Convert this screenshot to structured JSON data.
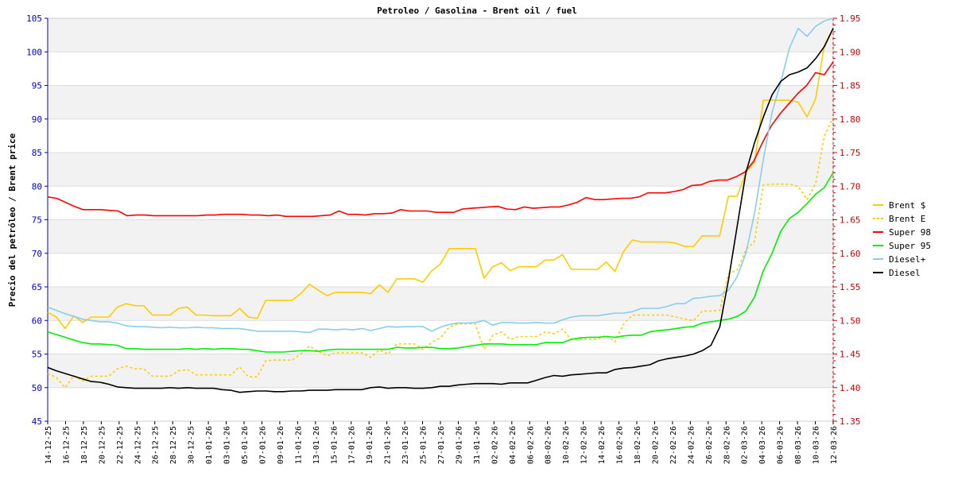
{
  "chart_data": {
    "type": "line",
    "title": "Petroleo / Gasolina  -  Brent oil / fuel",
    "ylabel": "Precio del petróleo  /  Brent price",
    "xlabel": "",
    "ylim_left": [
      45,
      105
    ],
    "ylim_right": [
      1.35,
      1.95
    ],
    "left_ticks": [
      "45",
      "50",
      "55",
      "60",
      "65",
      "70",
      "75",
      "80",
      "85",
      "90",
      "95",
      "100",
      "105"
    ],
    "right_ticks": [
      "1.35",
      "1.40",
      "1.45",
      "1.50",
      "1.55",
      "1.60",
      "1.65",
      "1.70",
      "1.75",
      "1.80",
      "1.85",
      "1.90",
      "1.95"
    ],
    "grid": true,
    "legend_position": "right",
    "x_labels": [
      "14-12-25",
      "16-12-25",
      "18-12-25",
      "20-12-25",
      "22-12-25",
      "24-12-25",
      "26-12-25",
      "28-12-25",
      "30-12-25",
      "01-01-26",
      "03-01-26",
      "05-01-26",
      "07-01-26",
      "09-01-26",
      "11-01-26",
      "13-01-26",
      "15-01-26",
      "17-01-26",
      "19-01-26",
      "21-01-26",
      "23-01-26",
      "25-01-26",
      "27-01-26",
      "29-01-26",
      "31-01-26",
      "02-02-26",
      "04-02-26",
      "06-02-26",
      "08-02-26",
      "10-02-26",
      "12-02-26",
      "14-02-26",
      "16-02-26",
      "18-02-26",
      "20-02-26",
      "22-02-26",
      "24-02-26",
      "26-02-26",
      "28-02-26",
      "02-03-26",
      "04-03-26",
      "06-03-26",
      "08-03-26",
      "10-03-26",
      "12-03-26"
    ],
    "series": [
      {
        "name": "Brent $",
        "axis": "left",
        "color": "#ffcc00",
        "dashed": false,
        "values": [
          61.2,
          60.5,
          58.8,
          60.7,
          59.7,
          60.5,
          60.5,
          60.5,
          62.0,
          62.5,
          62.2,
          62.2,
          60.8,
          60.8,
          60.8,
          61.8,
          62.0,
          60.8,
          60.8,
          60.7,
          60.7,
          60.7,
          61.8,
          60.5,
          60.3,
          63.0,
          63.0,
          63.0,
          63.0,
          64.0,
          65.4,
          64.5,
          63.7,
          64.2,
          64.2,
          64.2,
          64.2,
          64.0,
          65.3,
          64.2,
          66.2,
          66.2,
          66.2,
          65.7,
          67.4,
          68.4,
          70.7,
          70.7,
          70.7,
          70.7,
          66.3,
          68.0,
          68.6,
          67.4,
          68.0,
          68.0,
          68.0,
          69.0,
          69.0,
          69.8,
          67.6,
          67.6,
          67.6,
          67.6,
          68.7,
          67.3,
          70.3,
          72.0,
          71.7,
          71.7,
          71.7,
          71.7,
          71.5,
          71.0,
          71.0,
          72.6,
          72.6,
          72.6,
          78.5,
          78.5,
          82.0,
          83.6,
          92.8,
          92.8,
          92.8,
          92.8,
          92.5,
          90.3,
          93.0,
          101.0,
          103.5
        ]
      },
      {
        "name": "Brent E",
        "axis": "left",
        "color": "#ffcc00",
        "dashed": true,
        "values": [
          52.1,
          51.5,
          50.0,
          51.8,
          51.0,
          51.7,
          51.7,
          51.7,
          52.8,
          53.2,
          52.8,
          52.8,
          51.7,
          51.7,
          51.7,
          52.5,
          52.7,
          51.9,
          51.9,
          51.9,
          51.9,
          51.9,
          53.1,
          51.6,
          51.6,
          54.0,
          54.1,
          54.1,
          54.1,
          55.0,
          56.2,
          55.4,
          54.7,
          55.2,
          55.2,
          55.2,
          55.2,
          54.5,
          55.6,
          55.0,
          56.5,
          56.5,
          56.5,
          55.7,
          56.7,
          57.4,
          59.0,
          59.5,
          59.5,
          59.5,
          55.7,
          57.8,
          58.3,
          57.2,
          57.6,
          57.6,
          57.6,
          58.3,
          58.0,
          58.7,
          57.1,
          57.2,
          57.2,
          57.2,
          57.8,
          56.8,
          59.5,
          60.8,
          60.8,
          60.8,
          60.8,
          60.8,
          60.5,
          60.2,
          60.0,
          61.4,
          61.4,
          61.5,
          67.0,
          67.5,
          70.5,
          71.8,
          80.2,
          80.3,
          80.3,
          80.3,
          80.0,
          78.0,
          80.4,
          87.5,
          90.2
        ]
      },
      {
        "name": "Super 98",
        "axis": "right",
        "color": "#ff0000",
        "dashed": false,
        "values": [
          1.684,
          1.682,
          1.676,
          1.67,
          1.665,
          1.665,
          1.665,
          1.664,
          1.663,
          1.656,
          1.657,
          1.657,
          1.656,
          1.656,
          1.656,
          1.656,
          1.656,
          1.656,
          1.657,
          1.657,
          1.658,
          1.658,
          1.658,
          1.657,
          1.657,
          1.656,
          1.657,
          1.655,
          1.655,
          1.655,
          1.655,
          1.656,
          1.657,
          1.663,
          1.658,
          1.658,
          1.657,
          1.659,
          1.659,
          1.66,
          1.665,
          1.663,
          1.663,
          1.663,
          1.661,
          1.661,
          1.661,
          1.666,
          1.667,
          1.668,
          1.669,
          1.67,
          1.666,
          1.665,
          1.669,
          1.667,
          1.668,
          1.669,
          1.669,
          1.672,
          1.676,
          1.683,
          1.68,
          1.68,
          1.681,
          1.682,
          1.682,
          1.684,
          1.69,
          1.69,
          1.69,
          1.692,
          1.695,
          1.701,
          1.702,
          1.707,
          1.709,
          1.709,
          1.714,
          1.721,
          1.737,
          1.765,
          1.79,
          1.808,
          1.823,
          1.838,
          1.85,
          1.869,
          1.866,
          1.885
        ]
      },
      {
        "name": "Super 95",
        "axis": "right",
        "color": "#00ee00",
        "dashed": false,
        "values": [
          1.483,
          1.479,
          1.475,
          1.471,
          1.467,
          1.465,
          1.465,
          1.464,
          1.463,
          1.458,
          1.458,
          1.457,
          1.457,
          1.457,
          1.457,
          1.457,
          1.458,
          1.457,
          1.458,
          1.457,
          1.458,
          1.458,
          1.457,
          1.457,
          1.455,
          1.453,
          1.453,
          1.453,
          1.454,
          1.455,
          1.455,
          1.454,
          1.456,
          1.457,
          1.457,
          1.457,
          1.457,
          1.457,
          1.457,
          1.457,
          1.46,
          1.459,
          1.459,
          1.46,
          1.46,
          1.458,
          1.458,
          1.459,
          1.461,
          1.463,
          1.465,
          1.465,
          1.465,
          1.464,
          1.464,
          1.464,
          1.464,
          1.467,
          1.467,
          1.467,
          1.472,
          1.474,
          1.475,
          1.475,
          1.476,
          1.475,
          1.477,
          1.478,
          1.478,
          1.483,
          1.485,
          1.486,
          1.488,
          1.49,
          1.491,
          1.496,
          1.498,
          1.5,
          1.502,
          1.506,
          1.514,
          1.535,
          1.574,
          1.6,
          1.633,
          1.652,
          1.661,
          1.674,
          1.688,
          1.698,
          1.72
        ]
      },
      {
        "name": "Diesel+",
        "axis": "right",
        "color": "#87ceeb",
        "dashed": false,
        "values": [
          1.52,
          1.515,
          1.51,
          1.506,
          1.502,
          1.5,
          1.498,
          1.498,
          1.496,
          1.492,
          1.491,
          1.491,
          1.49,
          1.489,
          1.49,
          1.489,
          1.489,
          1.49,
          1.489,
          1.489,
          1.488,
          1.488,
          1.488,
          1.486,
          1.484,
          1.484,
          1.484,
          1.484,
          1.484,
          1.483,
          1.482,
          1.487,
          1.487,
          1.486,
          1.487,
          1.486,
          1.488,
          1.485,
          1.488,
          1.491,
          1.49,
          1.491,
          1.491,
          1.491,
          1.484,
          1.49,
          1.494,
          1.496,
          1.496,
          1.497,
          1.5,
          1.493,
          1.497,
          1.497,
          1.496,
          1.496,
          1.497,
          1.496,
          1.496,
          1.501,
          1.505,
          1.507,
          1.507,
          1.507,
          1.509,
          1.511,
          1.511,
          1.513,
          1.518,
          1.518,
          1.518,
          1.521,
          1.525,
          1.525,
          1.533,
          1.534,
          1.536,
          1.537,
          1.545,
          1.565,
          1.6,
          1.66,
          1.74,
          1.81,
          1.855,
          1.906,
          1.935,
          1.923,
          1.938,
          1.946,
          1.95
        ]
      },
      {
        "name": "Diesel",
        "axis": "right",
        "color": "#000000",
        "dashed": false,
        "values": [
          1.43,
          1.425,
          1.421,
          1.417,
          1.413,
          1.409,
          1.408,
          1.405,
          1.401,
          1.4,
          1.399,
          1.399,
          1.399,
          1.399,
          1.4,
          1.399,
          1.4,
          1.399,
          1.399,
          1.399,
          1.397,
          1.396,
          1.393,
          1.394,
          1.395,
          1.395,
          1.394,
          1.394,
          1.395,
          1.395,
          1.396,
          1.396,
          1.396,
          1.397,
          1.397,
          1.397,
          1.397,
          1.4,
          1.401,
          1.399,
          1.4,
          1.4,
          1.399,
          1.399,
          1.4,
          1.402,
          1.402,
          1.404,
          1.405,
          1.406,
          1.406,
          1.406,
          1.405,
          1.407,
          1.407,
          1.407,
          1.411,
          1.415,
          1.418,
          1.417,
          1.419,
          1.42,
          1.421,
          1.422,
          1.422,
          1.427,
          1.429,
          1.43,
          1.432,
          1.434,
          1.44,
          1.443,
          1.445,
          1.447,
          1.45,
          1.455,
          1.463,
          1.49,
          1.56,
          1.64,
          1.72,
          1.765,
          1.803,
          1.836,
          1.856,
          1.866,
          1.87,
          1.876,
          1.89,
          1.908,
          1.935
        ]
      }
    ]
  }
}
